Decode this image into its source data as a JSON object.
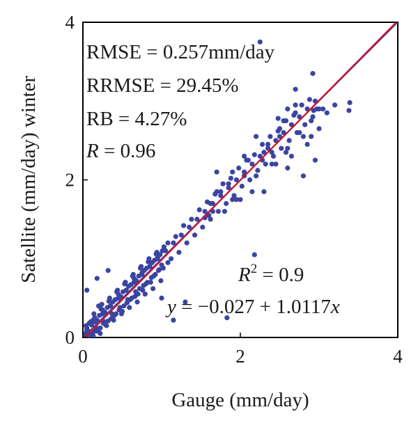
{
  "chart_data": {
    "type": "scatter",
    "xlabel": "Gauge (mm/day)",
    "ylabel": "Satellite (mm/day) winter",
    "xlim": [
      0,
      4
    ],
    "ylim": [
      0,
      4
    ],
    "x_ticks": [
      "0",
      "2",
      "4"
    ],
    "y_ticks": [
      "0",
      "2",
      "4"
    ],
    "grid": false,
    "colors": {
      "points": "#3b45a0",
      "fit_line": "#d0102a",
      "one_to_one_line": "#3b45a0",
      "axes": "#000000"
    },
    "annotations": {
      "rmse": "RMSE = 0.257mm/day",
      "rrmse": "RRMSE = 29.45%",
      "rb": "RB = 4.27%",
      "r_symbol": "R",
      "r_value": " = 0.96",
      "r2_symbol": "R",
      "r2_exponent": "2",
      "r2_value": " = 0.9",
      "eq_y": "y",
      "eq_body": " = −0.027 + 1.0117",
      "eq_x": "x"
    },
    "fit_line": {
      "intercept": -0.027,
      "slope": 1.0117
    },
    "one_to_one_line": {
      "intercept": 0,
      "slope": 1
    },
    "x": [
      2.25,
      2.92,
      2.93,
      2.28,
      2.48,
      2.7,
      3.39,
      3.38,
      2.05,
      1.62,
      1.55,
      1.15,
      1.08,
      0.05,
      0.18,
      0.32,
      0.2,
      0.12,
      2.18,
      1.83,
      1.3,
      1.0,
      2.58,
      2.6,
      2.9,
      2.97,
      0.22,
      0.13,
      0.1,
      0.03,
      0.02,
      0.05,
      0.15,
      0.25,
      0.35,
      0.45,
      0.55,
      0.65,
      0.75,
      0.85,
      0.95,
      1.05,
      1.15,
      1.25,
      1.35,
      1.45,
      1.55,
      1.65,
      1.75,
      1.85,
      1.95,
      2.05,
      2.15,
      2.25,
      2.35,
      2.45,
      2.55,
      2.65,
      2.75,
      2.85,
      2.95,
      0.08,
      0.12,
      0.18,
      0.22,
      0.28,
      0.32,
      0.38,
      0.42,
      0.48,
      0.52,
      0.58,
      0.62,
      0.68,
      0.72,
      0.78,
      0.82,
      0.88,
      0.92,
      0.98,
      1.02,
      1.08,
      1.12,
      1.18,
      1.22,
      1.28,
      1.32,
      1.38,
      1.42,
      1.48,
      1.52,
      1.58,
      1.62,
      1.68,
      1.72,
      1.78,
      1.82,
      1.88,
      1.92,
      1.98,
      2.02,
      2.08,
      2.12,
      2.18,
      2.22,
      2.28,
      2.32,
      2.38,
      2.42,
      2.48,
      2.52,
      2.58,
      2.62,
      2.68,
      2.72,
      2.78,
      2.82,
      2.88,
      2.92,
      0.05,
      0.1,
      0.15,
      0.2,
      0.25,
      0.3,
      0.35,
      0.4,
      0.45,
      0.5,
      0.55,
      0.6,
      0.65,
      0.7,
      0.75,
      0.8,
      0.85,
      0.9,
      0.95,
      1.0,
      0.07,
      0.11,
      0.16,
      0.21,
      0.26,
      0.31,
      0.36,
      0.41,
      0.46,
      0.51,
      0.56,
      0.61,
      0.66,
      0.71,
      0.76,
      0.81,
      0.86,
      0.91,
      0.96,
      1.01,
      0.04,
      0.09,
      0.14,
      0.19,
      0.24,
      0.29,
      0.34,
      0.39,
      0.44,
      0.49,
      0.54,
      0.59,
      0.64,
      0.69,
      0.74,
      0.79,
      0.84,
      0.89,
      0.94,
      0.99,
      0.06,
      0.13,
      0.17,
      0.23,
      0.27,
      0.33,
      0.37,
      0.43,
      0.47,
      0.53,
      0.57,
      0.63,
      0.67,
      0.73,
      0.77,
      0.83,
      0.87,
      0.93,
      0.97,
      1.03,
      1.6,
      1.7,
      1.8,
      1.9,
      2.0,
      2.1,
      2.2,
      2.3,
      2.4,
      2.5,
      2.6,
      2.7,
      2.8,
      2.9,
      3.0,
      3.1,
      3.2,
      2.35,
      2.45,
      2.55,
      2.65,
      2.75,
      2.85,
      2.95,
      3.05,
      2.15,
      2.05,
      1.95,
      1.85,
      1.75,
      1.65,
      2.3,
      2.5,
      2.7,
      2.8,
      3.0,
      2.4,
      2.6,
      2.2,
      1.9,
      1.7
    ],
    "y": [
      3.75,
      3.35,
      2.88,
      2.25,
      2.78,
      3.15,
      2.98,
      2.88,
      2.3,
      1.7,
      1.52,
      0.22,
      0.95,
      0.6,
      0.75,
      0.85,
      0.4,
      0.05,
      1.05,
      0.25,
      0.45,
      0.5,
      2.35,
      2.15,
      2.55,
      2.9,
      0.05,
      0.02,
      0.02,
      0.01,
      0.05,
      0.1,
      0.2,
      0.3,
      0.4,
      0.5,
      0.6,
      0.7,
      0.8,
      0.9,
      1.0,
      1.1,
      1.2,
      1.3,
      1.4,
      1.5,
      1.6,
      1.7,
      1.8,
      1.9,
      2.0,
      2.1,
      2.2,
      2.3,
      2.4,
      2.5,
      2.6,
      2.7,
      2.8,
      2.9,
      3.0,
      0.18,
      0.06,
      0.22,
      0.12,
      0.32,
      0.21,
      0.45,
      0.3,
      0.52,
      0.4,
      0.65,
      0.5,
      0.72,
      0.62,
      0.85,
      0.7,
      0.95,
      0.8,
      1.05,
      0.88,
      1.2,
      1.0,
      1.28,
      1.08,
      1.42,
      1.2,
      1.5,
      1.3,
      1.62,
      1.4,
      1.72,
      1.5,
      1.82,
      1.6,
      1.95,
      1.7,
      2.02,
      1.8,
      2.15,
      1.92,
      2.25,
      2.0,
      2.32,
      2.12,
      2.45,
      2.2,
      2.55,
      2.3,
      2.62,
      2.4,
      2.75,
      2.5,
      2.82,
      2.6,
      2.95,
      2.7,
      3.02,
      2.8,
      0.12,
      0.2,
      0.25,
      0.1,
      0.35,
      0.15,
      0.4,
      0.28,
      0.55,
      0.33,
      0.6,
      0.48,
      0.75,
      0.55,
      0.82,
      0.68,
      0.9,
      0.78,
      1.02,
      0.92,
      0.03,
      0.16,
      0.08,
      0.28,
      0.18,
      0.38,
      0.24,
      0.48,
      0.35,
      0.58,
      0.44,
      0.67,
      0.52,
      0.78,
      0.6,
      0.88,
      0.7,
      0.98,
      0.85,
      1.1,
      0.15,
      0.05,
      0.3,
      0.08,
      0.42,
      0.16,
      0.5,
      0.22,
      0.6,
      0.3,
      0.7,
      0.38,
      0.8,
      0.45,
      0.9,
      0.55,
      1.0,
      0.62,
      1.08,
      0.72,
      0.09,
      0.22,
      0.12,
      0.36,
      0.2,
      0.46,
      0.3,
      0.58,
      0.38,
      0.68,
      0.48,
      0.78,
      0.58,
      0.88,
      0.66,
      0.96,
      0.76,
      1.06,
      0.86,
      1.15,
      1.55,
      1.85,
      1.6,
      2.1,
      1.75,
      2.25,
      2.05,
      2.35,
      2.2,
      2.65,
      2.4,
      2.85,
      2.55,
      2.75,
      2.9,
      2.85,
      2.95,
      2.45,
      2.2,
      2.75,
      2.3,
      2.6,
      2.45,
      2.25,
      2.9,
      1.85,
      2.05,
      1.75,
      1.95,
      1.85,
      1.6,
      1.85,
      2.55,
      2.95,
      2.05,
      2.65,
      2.35,
      2.9,
      2.55,
      1.75,
      2.1
    ]
  }
}
